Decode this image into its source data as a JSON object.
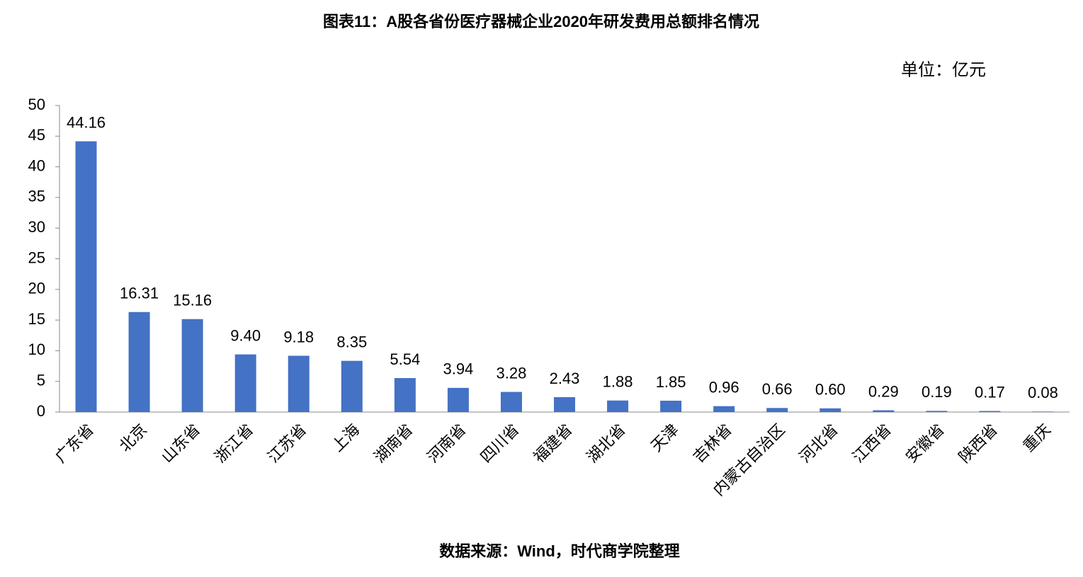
{
  "chart_data": {
    "type": "bar",
    "title": "图表11：A股各省份医疗器械企业2020年研发费用总额排名情况",
    "unit": "单位：亿元",
    "source": "数据来源：Wind，时代商学院整理",
    "categories": [
      "广东省",
      "北京",
      "山东省",
      "浙江省",
      "江苏省",
      "上海",
      "湖南省",
      "河南省",
      "四川省",
      "福建省",
      "湖北省",
      "天津",
      "吉林省",
      "内蒙古自治区",
      "河北省",
      "江西省",
      "安徽省",
      "陕西省",
      "重庆"
    ],
    "values": [
      44.16,
      16.31,
      15.16,
      9.4,
      9.18,
      8.35,
      5.54,
      3.94,
      3.28,
      2.43,
      1.88,
      1.85,
      0.96,
      0.66,
      0.6,
      0.29,
      0.19,
      0.17,
      0.08
    ],
    "value_labels": [
      "44.16",
      "16.31",
      "15.16",
      "9.40",
      "9.18",
      "8.35",
      "5.54",
      "3.94",
      "3.28",
      "2.43",
      "1.88",
      "1.85",
      "0.96",
      "0.66",
      "0.60",
      "0.29",
      "0.19",
      "0.17",
      "0.08"
    ],
    "color": "#4472c4",
    "ylim": [
      0,
      50
    ],
    "yticks": [
      0,
      5,
      10,
      15,
      20,
      25,
      30,
      35,
      40,
      45,
      50
    ],
    "grid": false
  }
}
